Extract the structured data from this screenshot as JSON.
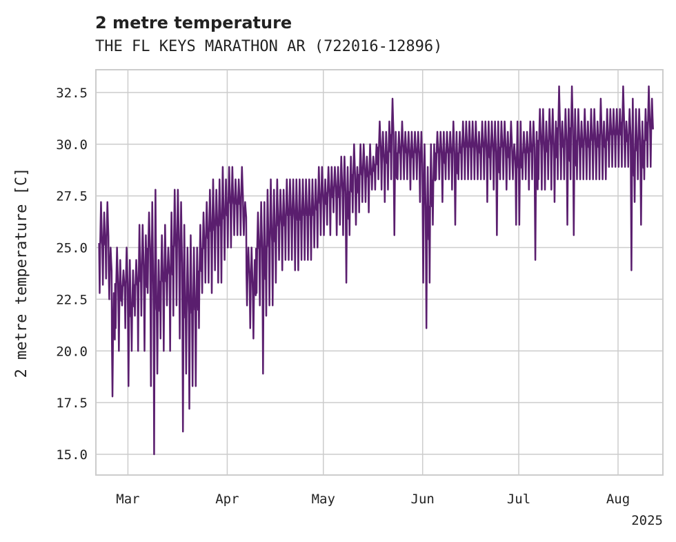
{
  "chart_data": {
    "type": "line",
    "title": "2 metre temperature",
    "subtitle": "THE FL KEYS MARATHON AR (722016-12896)",
    "xlabel": "",
    "ylabel": "2 metre temperature [C]",
    "year_label": "2025",
    "xlim": [
      "2025-02-19",
      "2025-08-15"
    ],
    "ylim": [
      14.0,
      33.6
    ],
    "x_ticks": [
      {
        "date": "2025-03-01",
        "label": "Mar"
      },
      {
        "date": "2025-04-01",
        "label": "Apr"
      },
      {
        "date": "2025-05-01",
        "label": "May"
      },
      {
        "date": "2025-06-01",
        "label": "Jun"
      },
      {
        "date": "2025-07-01",
        "label": "Jul"
      },
      {
        "date": "2025-08-01",
        "label": "Aug"
      }
    ],
    "y_ticks": [
      15.0,
      17.5,
      20.0,
      22.5,
      25.0,
      27.5,
      30.0,
      32.5
    ],
    "y_tick_labels": [
      "15.0",
      "17.5",
      "20.0",
      "22.5",
      "25.0",
      "27.5",
      "30.0",
      "32.5"
    ],
    "grid": true,
    "legend": "none",
    "line_color": "#5a1e6e",
    "series": [
      {
        "x": [
          "2025-02-20",
          "2025-02-21",
          "2025-02-22",
          "2025-02-23",
          "2025-02-24",
          "2025-02-25",
          "2025-02-26",
          "2025-02-27",
          "2025-02-28",
          "2025-03-01",
          "2025-03-02",
          "2025-03-03",
          "2025-03-04",
          "2025-03-05",
          "2025-03-06",
          "2025-03-07",
          "2025-03-08",
          "2025-03-09",
          "2025-03-10",
          "2025-03-11",
          "2025-03-12",
          "2025-03-13",
          "2025-03-14",
          "2025-03-15",
          "2025-03-16",
          "2025-03-17",
          "2025-03-18",
          "2025-03-19",
          "2025-03-20",
          "2025-03-21",
          "2025-03-22",
          "2025-03-23",
          "2025-03-24",
          "2025-03-25",
          "2025-03-26",
          "2025-03-27",
          "2025-03-28",
          "2025-03-29",
          "2025-03-30",
          "2025-03-31",
          "2025-04-01",
          "2025-04-02",
          "2025-04-03",
          "2025-04-04",
          "2025-04-05",
          "2025-04-06",
          "2025-04-07",
          "2025-04-08",
          "2025-04-09",
          "2025-04-10",
          "2025-04-11",
          "2025-04-12",
          "2025-04-13",
          "2025-04-14",
          "2025-04-15",
          "2025-04-16",
          "2025-04-17",
          "2025-04-18",
          "2025-04-19",
          "2025-04-20",
          "2025-04-21",
          "2025-04-22",
          "2025-04-23",
          "2025-04-24",
          "2025-04-25",
          "2025-04-26",
          "2025-04-27",
          "2025-04-28",
          "2025-04-29",
          "2025-04-30",
          "2025-05-01",
          "2025-05-02",
          "2025-05-03",
          "2025-05-04",
          "2025-05-05",
          "2025-05-06",
          "2025-05-07",
          "2025-05-08",
          "2025-05-09",
          "2025-05-10",
          "2025-05-11",
          "2025-05-12",
          "2025-05-13",
          "2025-05-14",
          "2025-05-15",
          "2025-05-16",
          "2025-05-17",
          "2025-05-18",
          "2025-05-19",
          "2025-05-20",
          "2025-05-21",
          "2025-05-22",
          "2025-05-23",
          "2025-05-24",
          "2025-05-25",
          "2025-05-26",
          "2025-05-27",
          "2025-05-28",
          "2025-05-29",
          "2025-05-30",
          "2025-05-31",
          "2025-06-01",
          "2025-06-02",
          "2025-06-03",
          "2025-06-04",
          "2025-06-05",
          "2025-06-06",
          "2025-06-07",
          "2025-06-08",
          "2025-06-09",
          "2025-06-10",
          "2025-06-11",
          "2025-06-12",
          "2025-06-13",
          "2025-06-14",
          "2025-06-15",
          "2025-06-16",
          "2025-06-17",
          "2025-06-18",
          "2025-06-19",
          "2025-06-20",
          "2025-06-21",
          "2025-06-22",
          "2025-06-23",
          "2025-06-24",
          "2025-06-25",
          "2025-06-26",
          "2025-06-27",
          "2025-06-28",
          "2025-06-29",
          "2025-06-30",
          "2025-07-01",
          "2025-07-02",
          "2025-07-03",
          "2025-07-04",
          "2025-07-05",
          "2025-07-06",
          "2025-07-07",
          "2025-07-08",
          "2025-07-09",
          "2025-07-10",
          "2025-07-11",
          "2025-07-12",
          "2025-07-13",
          "2025-07-14",
          "2025-07-15",
          "2025-07-16",
          "2025-07-17",
          "2025-07-18",
          "2025-07-19",
          "2025-07-20",
          "2025-07-21",
          "2025-07-22",
          "2025-07-23",
          "2025-07-24",
          "2025-07-25",
          "2025-07-26",
          "2025-07-27",
          "2025-07-28",
          "2025-07-29",
          "2025-07-30",
          "2025-07-31",
          "2025-08-01",
          "2025-08-02",
          "2025-08-03",
          "2025-08-04",
          "2025-08-05",
          "2025-08-06",
          "2025-08-07",
          "2025-08-08",
          "2025-08-09",
          "2025-08-10",
          "2025-08-11",
          "2025-08-12",
          "2025-08-13",
          "2025-08-14"
        ],
        "min": [
          22.8,
          23.2,
          23.5,
          22.5,
          17.8,
          21.1,
          20.0,
          22.2,
          21.1,
          18.3,
          20.0,
          21.7,
          20.0,
          21.7,
          20.0,
          22.8,
          18.3,
          15.0,
          18.9,
          20.6,
          20.0,
          22.2,
          20.0,
          21.7,
          22.2,
          20.6,
          16.1,
          18.9,
          17.2,
          18.3,
          18.3,
          21.1,
          22.8,
          23.3,
          23.3,
          22.8,
          23.9,
          23.3,
          23.3,
          24.4,
          25.0,
          25.0,
          25.6,
          25.6,
          25.6,
          25.6,
          22.2,
          21.1,
          20.6,
          22.8,
          22.2,
          18.9,
          21.7,
          22.2,
          22.2,
          23.3,
          24.4,
          23.9,
          24.4,
          24.4,
          24.4,
          23.9,
          23.9,
          24.4,
          24.4,
          24.4,
          24.4,
          25.0,
          25.0,
          25.6,
          25.6,
          26.1,
          25.6,
          26.7,
          25.6,
          26.1,
          25.6,
          23.3,
          25.6,
          26.7,
          26.1,
          26.7,
          27.2,
          27.2,
          26.7,
          27.8,
          27.8,
          28.3,
          27.8,
          27.2,
          27.8,
          28.3,
          25.6,
          28.3,
          28.3,
          28.3,
          28.3,
          27.8,
          28.3,
          28.3,
          27.2,
          23.3,
          21.1,
          23.3,
          26.1,
          28.3,
          28.3,
          27.2,
          28.3,
          28.3,
          27.8,
          26.1,
          28.3,
          28.3,
          28.3,
          28.3,
          28.3,
          28.3,
          28.3,
          28.3,
          28.3,
          27.2,
          28.3,
          27.8,
          25.6,
          28.3,
          28.3,
          27.8,
          28.3,
          28.3,
          26.1,
          26.1,
          28.3,
          28.3,
          27.8,
          28.3,
          24.4,
          28.3,
          27.8,
          27.8,
          28.3,
          27.8,
          27.2,
          28.3,
          28.3,
          28.3,
          26.1,
          28.3,
          25.6,
          28.3,
          28.3,
          28.3,
          28.3,
          28.3,
          28.3,
          28.3,
          28.3,
          28.3,
          28.3,
          28.9,
          28.9,
          28.9,
          28.9,
          28.9,
          28.9,
          28.9,
          23.9,
          27.2,
          28.3,
          26.1,
          28.3,
          28.9,
          28.9
        ],
        "max": [
          27.2,
          26.7,
          27.2,
          25.0,
          22.8,
          25.0,
          24.4,
          23.9,
          25.0,
          24.4,
          23.9,
          24.4,
          26.1,
          26.1,
          25.6,
          26.7,
          27.2,
          27.8,
          24.4,
          25.6,
          26.1,
          25.0,
          26.7,
          27.8,
          27.8,
          27.2,
          26.1,
          25.0,
          25.6,
          25.0,
          25.0,
          26.1,
          26.7,
          27.2,
          27.8,
          28.3,
          27.8,
          28.3,
          28.9,
          28.3,
          28.9,
          28.9,
          28.3,
          28.3,
          28.9,
          27.2,
          25.0,
          25.0,
          24.4,
          26.7,
          27.2,
          27.2,
          27.8,
          28.3,
          27.8,
          28.3,
          27.8,
          27.8,
          28.3,
          28.3,
          28.3,
          28.3,
          28.3,
          28.3,
          28.3,
          28.3,
          28.3,
          28.3,
          28.9,
          28.9,
          28.3,
          28.9,
          28.9,
          28.9,
          28.9,
          29.4,
          29.4,
          28.9,
          29.4,
          30.0,
          28.9,
          30.0,
          30.0,
          29.4,
          30.0,
          29.4,
          30.0,
          31.1,
          30.6,
          30.6,
          31.1,
          32.2,
          30.6,
          30.6,
          31.1,
          30.6,
          30.6,
          30.6,
          30.6,
          30.6,
          30.6,
          30.0,
          28.9,
          30.0,
          30.0,
          30.6,
          30.6,
          30.6,
          30.6,
          30.6,
          31.1,
          30.6,
          30.6,
          31.1,
          31.1,
          31.1,
          31.1,
          31.1,
          30.6,
          31.1,
          31.1,
          31.1,
          31.1,
          31.1,
          31.1,
          31.1,
          31.1,
          30.6,
          31.1,
          30.0,
          31.1,
          31.1,
          30.6,
          30.6,
          31.1,
          31.1,
          30.6,
          31.7,
          31.7,
          31.1,
          31.7,
          31.7,
          31.1,
          32.8,
          31.1,
          31.7,
          31.7,
          32.8,
          31.7,
          31.7,
          31.1,
          31.7,
          31.1,
          31.7,
          31.7,
          31.1,
          32.2,
          31.1,
          31.7,
          31.7,
          31.7,
          31.7,
          31.7,
          32.8,
          31.1,
          31.7,
          32.2,
          31.7,
          31.7,
          31.1,
          31.7,
          32.8,
          32.2,
          31.7,
          30.6,
          30.6,
          30.6,
          30.0,
          31.7,
          31.1,
          31.7
        ]
      }
    ]
  }
}
